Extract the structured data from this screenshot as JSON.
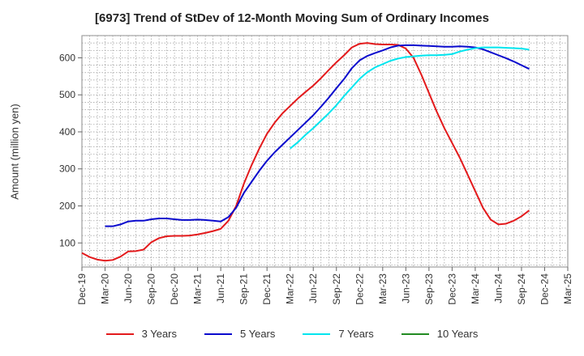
{
  "chart_data": {
    "type": "line",
    "title": "[6973]  Trend of StDev of 12-Month Moving Sum of Ordinary Incomes",
    "xlabel": "",
    "ylabel": "Amount (million yen)",
    "ylim": [
      35,
      660
    ],
    "y_ticks": [
      100,
      200,
      300,
      400,
      500,
      600
    ],
    "x_tick_labels": [
      "Dec-19",
      "Mar-20",
      "Jun-20",
      "Sep-20",
      "Dec-20",
      "Mar-21",
      "Jun-21",
      "Sep-21",
      "Dec-21",
      "Mar-22",
      "Jun-22",
      "Sep-22",
      "Dec-22",
      "Mar-23",
      "Jun-23",
      "Sep-23",
      "Dec-23",
      "Mar-24",
      "Jun-24",
      "Sep-24",
      "Dec-24",
      "Mar-25"
    ],
    "grid": true,
    "legend_position": "bottom",
    "series": [
      {
        "name": "3 Years",
        "color": "#e31a1c",
        "points": [
          [
            0,
            73
          ],
          [
            1,
            62
          ],
          [
            2,
            55
          ],
          [
            3,
            52
          ],
          [
            4,
            54
          ],
          [
            5,
            63
          ],
          [
            6,
            77
          ],
          [
            7,
            78
          ],
          [
            8,
            82
          ],
          [
            9,
            102
          ],
          [
            10,
            113
          ],
          [
            11,
            118
          ],
          [
            12,
            119
          ],
          [
            13,
            119
          ],
          [
            14,
            120
          ],
          [
            15,
            123
          ],
          [
            16,
            127
          ],
          [
            17,
            132
          ],
          [
            18,
            138
          ],
          [
            19,
            160
          ],
          [
            20,
            200
          ],
          [
            21,
            260
          ],
          [
            22,
            310
          ],
          [
            23,
            355
          ],
          [
            24,
            395
          ],
          [
            25,
            425
          ],
          [
            26,
            450
          ],
          [
            27,
            470
          ],
          [
            28,
            490
          ],
          [
            29,
            508
          ],
          [
            30,
            525
          ],
          [
            31,
            545
          ],
          [
            32,
            567
          ],
          [
            33,
            588
          ],
          [
            34,
            607
          ],
          [
            35,
            628
          ],
          [
            36,
            638
          ],
          [
            37,
            640
          ],
          [
            38,
            637
          ],
          [
            39,
            636
          ],
          [
            40,
            636
          ],
          [
            41,
            635
          ],
          [
            42,
            625
          ],
          [
            43,
            600
          ],
          [
            44,
            555
          ],
          [
            45,
            505
          ],
          [
            46,
            455
          ],
          [
            47,
            410
          ],
          [
            48,
            370
          ],
          [
            49,
            330
          ],
          [
            50,
            285
          ],
          [
            51,
            240
          ],
          [
            52,
            195
          ],
          [
            53,
            163
          ],
          [
            54,
            150
          ],
          [
            55,
            152
          ],
          [
            56,
            160
          ],
          [
            57,
            172
          ],
          [
            58,
            188
          ]
        ]
      },
      {
        "name": "5 Years",
        "color": "#0a0acd",
        "points": [
          [
            3,
            145
          ],
          [
            4,
            145
          ],
          [
            5,
            150
          ],
          [
            6,
            158
          ],
          [
            7,
            160
          ],
          [
            8,
            160
          ],
          [
            9,
            164
          ],
          [
            10,
            166
          ],
          [
            11,
            166
          ],
          [
            12,
            164
          ],
          [
            13,
            162
          ],
          [
            14,
            162
          ],
          [
            15,
            163
          ],
          [
            16,
            162
          ],
          [
            17,
            160
          ],
          [
            18,
            158
          ],
          [
            19,
            170
          ],
          [
            20,
            195
          ],
          [
            21,
            235
          ],
          [
            22,
            265
          ],
          [
            23,
            295
          ],
          [
            24,
            322
          ],
          [
            25,
            345
          ],
          [
            26,
            365
          ],
          [
            27,
            385
          ],
          [
            28,
            405
          ],
          [
            29,
            425
          ],
          [
            30,
            445
          ],
          [
            31,
            468
          ],
          [
            32,
            492
          ],
          [
            33,
            518
          ],
          [
            34,
            543
          ],
          [
            35,
            572
          ],
          [
            36,
            593
          ],
          [
            37,
            605
          ],
          [
            38,
            613
          ],
          [
            39,
            620
          ],
          [
            40,
            628
          ],
          [
            41,
            633
          ],
          [
            42,
            634
          ],
          [
            43,
            634
          ],
          [
            44,
            633
          ],
          [
            45,
            632
          ],
          [
            46,
            631
          ],
          [
            47,
            630
          ],
          [
            48,
            630
          ],
          [
            49,
            631
          ],
          [
            50,
            630
          ],
          [
            51,
            628
          ],
          [
            52,
            623
          ],
          [
            53,
            615
          ],
          [
            54,
            607
          ],
          [
            55,
            599
          ],
          [
            56,
            590
          ],
          [
            57,
            580
          ],
          [
            58,
            570
          ]
        ]
      },
      {
        "name": "7 Years",
        "color": "#00e5ee",
        "points": [
          [
            27,
            355
          ],
          [
            28,
            372
          ],
          [
            29,
            392
          ],
          [
            30,
            410
          ],
          [
            31,
            430
          ],
          [
            32,
            450
          ],
          [
            33,
            472
          ],
          [
            34,
            497
          ],
          [
            35,
            520
          ],
          [
            36,
            543
          ],
          [
            37,
            561
          ],
          [
            38,
            574
          ],
          [
            39,
            583
          ],
          [
            40,
            592
          ],
          [
            41,
            598
          ],
          [
            42,
            602
          ],
          [
            43,
            604
          ],
          [
            44,
            606
          ],
          [
            45,
            607
          ],
          [
            46,
            607
          ],
          [
            47,
            608
          ],
          [
            48,
            610
          ],
          [
            49,
            617
          ],
          [
            50,
            622
          ],
          [
            51,
            626
          ],
          [
            52,
            628
          ],
          [
            53,
            628
          ],
          [
            54,
            628
          ],
          [
            55,
            627
          ],
          [
            56,
            626
          ],
          [
            57,
            625
          ],
          [
            58,
            622
          ]
        ]
      },
      {
        "name": "10 Years",
        "color": "#228b22",
        "points": []
      }
    ]
  }
}
